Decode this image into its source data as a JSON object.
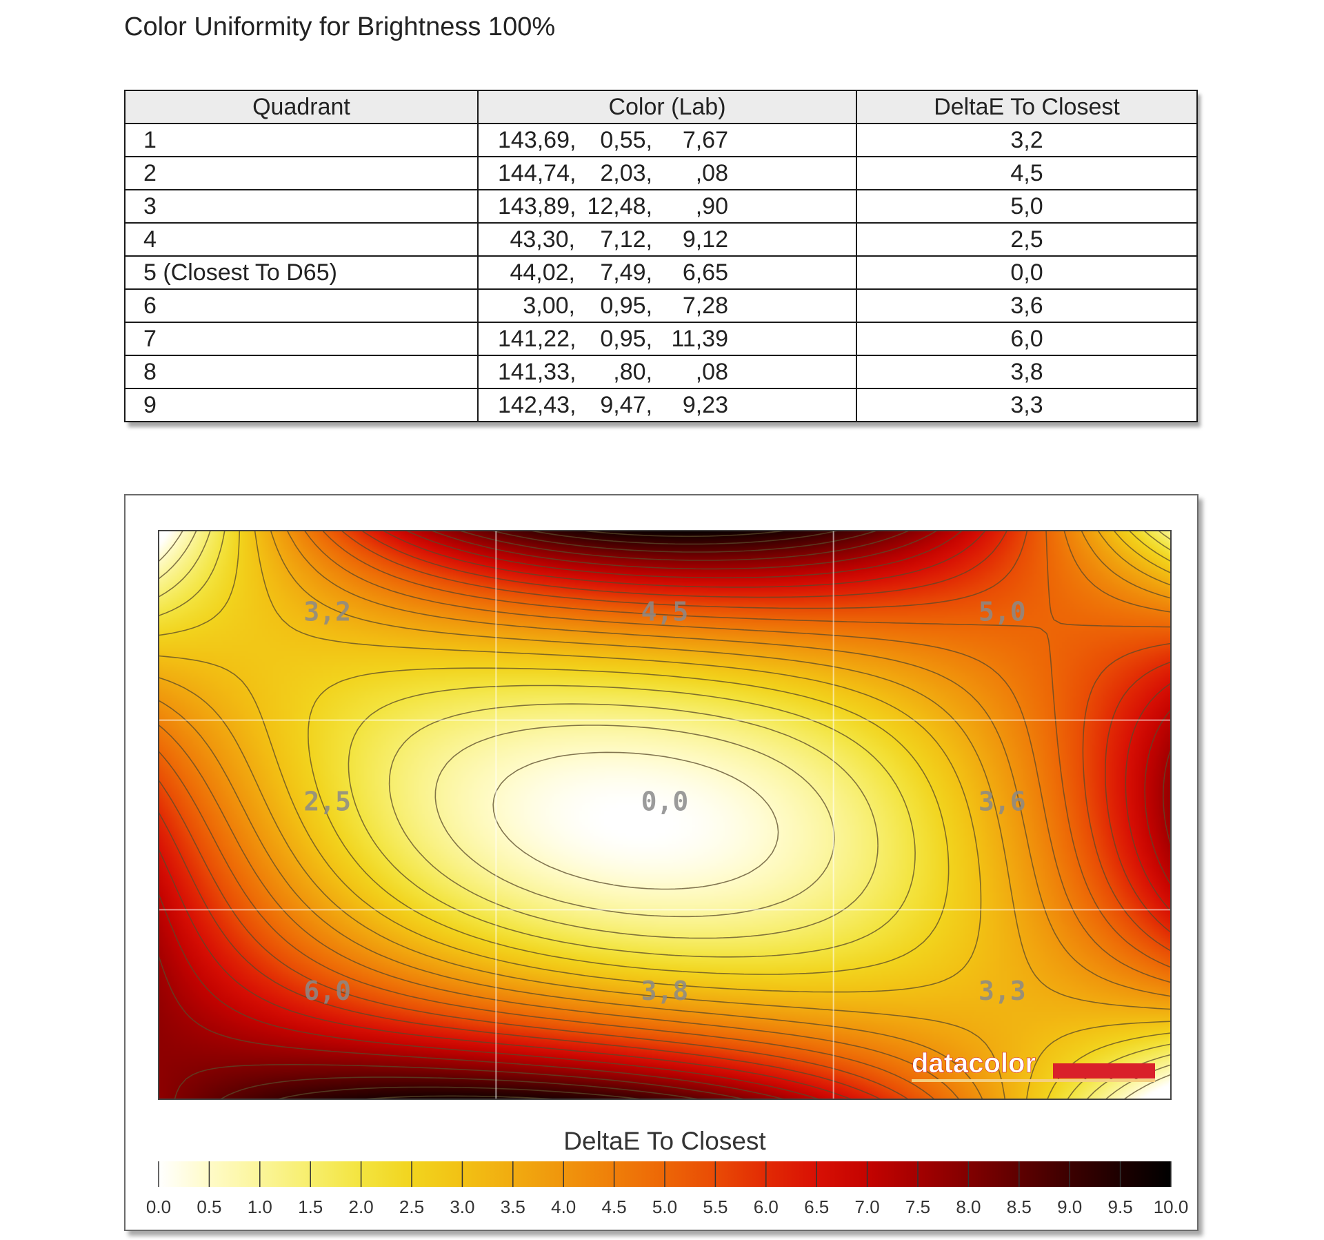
{
  "page": {
    "title": "Color Uniformity for Brightness 100%"
  },
  "table": {
    "headers": [
      "Quadrant",
      "Color (Lab)",
      "DeltaE To Closest"
    ],
    "rows": [
      {
        "quadrant": "1",
        "lab": [
          "143,69,",
          "0,55,",
          "7,67"
        ],
        "delta": "3,2"
      },
      {
        "quadrant": "2",
        "lab": [
          "144,74,",
          "2,03,",
          ",08"
        ],
        "delta": "4,5"
      },
      {
        "quadrant": "3",
        "lab": [
          "143,89,",
          "12,48,",
          ",90"
        ],
        "delta": "5,0"
      },
      {
        "quadrant": "4",
        "lab": [
          "43,30,",
          "7,12,",
          "9,12"
        ],
        "delta": "2,5"
      },
      {
        "quadrant": "5 (Closest To D65)",
        "lab": [
          "44,02,",
          "7,49,",
          "6,65"
        ],
        "delta": "0,0"
      },
      {
        "quadrant": "6",
        "lab": [
          "3,00,",
          "0,95,",
          "7,28"
        ],
        "delta": "3,6"
      },
      {
        "quadrant": "7",
        "lab": [
          "141,22,",
          "0,95,",
          "11,39"
        ],
        "delta": "6,0"
      },
      {
        "quadrant": "8",
        "lab": [
          "141,33,",
          ",80,",
          ",08"
        ],
        "delta": "3,8"
      },
      {
        "quadrant": "9",
        "lab": [
          "142,43,",
          "9,47,",
          "9,23"
        ],
        "delta": "3,3"
      }
    ]
  },
  "logo": {
    "text": "datacolor",
    "color": "#d9202a"
  },
  "chart_data": {
    "type": "heatmap",
    "rows": 3,
    "cols": 3,
    "values": [
      [
        3.2,
        4.5,
        5.0
      ],
      [
        2.5,
        0.0,
        3.6
      ],
      [
        6.0,
        3.8,
        3.3
      ]
    ],
    "cell_labels": [
      [
        "3,2",
        "4,5",
        "5,0"
      ],
      [
        "2,5",
        "0,0",
        "3,6"
      ],
      [
        "6,0",
        "3,8",
        "3,3"
      ]
    ],
    "contour_interval": 0.5,
    "colorbar": {
      "title": "DeltaE To Closest",
      "min": 0,
      "max": 10,
      "ticks": [
        "0.0",
        "0.5",
        "1.0",
        "1.5",
        "2.0",
        "2.5",
        "3.0",
        "3.5",
        "4.0",
        "4.5",
        "5.0",
        "5.5",
        "6.0",
        "6.5",
        "7.0",
        "7.5",
        "8.0",
        "8.5",
        "9.0",
        "9.5",
        "10.0"
      ]
    },
    "color_stops": [
      [
        0.0,
        "#ffffff"
      ],
      [
        0.5,
        "#fffbc8"
      ],
      [
        1.0,
        "#fbf59a"
      ],
      [
        1.5,
        "#f7ee6c"
      ],
      [
        2.0,
        "#f3e43f"
      ],
      [
        2.5,
        "#f2d41e"
      ],
      [
        3.0,
        "#f2c114"
      ],
      [
        3.5,
        "#f1ab10"
      ],
      [
        4.0,
        "#f0950c"
      ],
      [
        4.5,
        "#ef7e09"
      ],
      [
        5.0,
        "#ed6606"
      ],
      [
        5.5,
        "#e94b05"
      ],
      [
        6.0,
        "#e22a04"
      ],
      [
        6.5,
        "#d81004"
      ],
      [
        7.0,
        "#c40300"
      ],
      [
        7.5,
        "#a40000"
      ],
      [
        8.0,
        "#820000"
      ],
      [
        8.5,
        "#5e0000"
      ],
      [
        9.0,
        "#3c0000"
      ],
      [
        9.5,
        "#1d0000"
      ],
      [
        10.0,
        "#000000"
      ]
    ]
  }
}
